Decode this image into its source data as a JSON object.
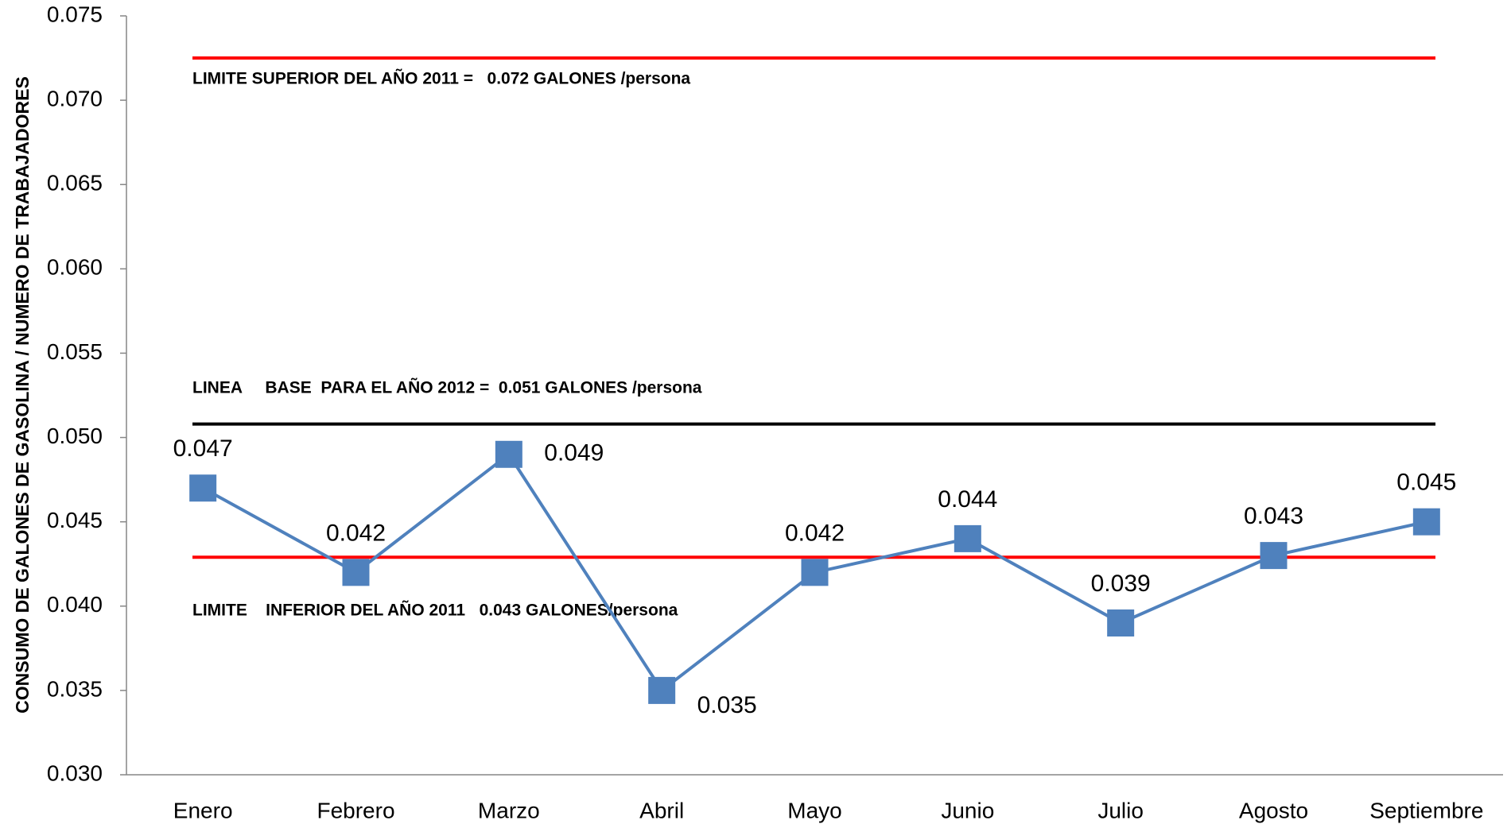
{
  "chart_data": {
    "type": "line",
    "y_label": "CONSUMO DE GALONES DE GASOLINA / NUMERO DE TRABAJADORES",
    "categories": [
      "Enero",
      "Febrero",
      "Marzo",
      "Abril",
      "Mayo",
      "Junio",
      "Julio",
      "Agosto",
      "Septiembre"
    ],
    "series": [
      {
        "name": "Consumo",
        "color": "#4f81bd",
        "values": [
          0.047,
          0.042,
          0.049,
          0.035,
          0.042,
          0.044,
          0.039,
          0.043,
          0.045
        ]
      }
    ],
    "ylim": [
      0.03,
      0.075
    ],
    "yticks": [
      {
        "value": 0.03,
        "label": "0.030"
      },
      0.035,
      {
        "value": 0.04,
        "label": "0.040"
      },
      0.045,
      {
        "value": 0.05,
        "label": "0.050"
      },
      0.055,
      {
        "value": 0.06,
        "label": "0.060"
      },
      0.065,
      {
        "value": 0.07,
        "label": "0.070"
      },
      0.075
    ],
    "reference_lines": [
      {
        "value": 0.0725,
        "color": "#ff0000"
      },
      {
        "value": 0.0508,
        "color": "#000000"
      },
      {
        "value": 0.0429,
        "color": "#ff0000"
      }
    ],
    "annotations": [
      "LIMITE SUPERIOR DEL AÑO 2011 =   0.072 GALONES /persona",
      "LINEA     BASE  PARA EL AÑO 2012 =  0.051 GALONES /persona",
      "LIMITE    INFERIOR DEL AÑO 2011   0.043 GALONES/persona"
    ]
  }
}
